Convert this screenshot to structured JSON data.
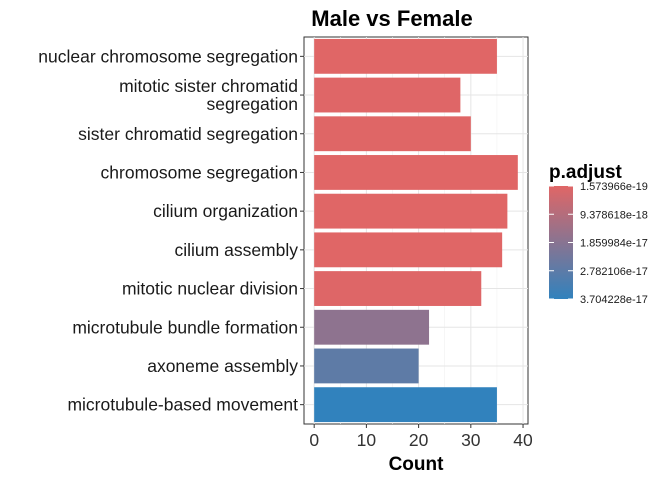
{
  "chart_data": {
    "type": "bar",
    "orientation": "horizontal",
    "title": "Male vs Female",
    "xlabel": "Count",
    "ylabel": "",
    "xlim": [
      -1.95,
      40.95
    ],
    "xticks": [
      0,
      10,
      20,
      30,
      40
    ],
    "grid": true,
    "categories": [
      "nuclear chromosome segregation",
      "mitotic sister chromatid segregation",
      "sister chromatid segregation",
      "chromosome segregation",
      "cilium organization",
      "cilium assembly",
      "mitotic nuclear division",
      "microtubule bundle formation",
      "axoneme assembly",
      "microtubule-based movement"
    ],
    "category_lines": [
      [
        "nuclear chromosome segregation"
      ],
      [
        "mitotic sister chromatid",
        "segregation"
      ],
      [
        "sister chromatid segregation"
      ],
      [
        "chromosome segregation"
      ],
      [
        "cilium organization"
      ],
      [
        "cilium assembly"
      ],
      [
        "mitotic nuclear division"
      ],
      [
        "microtubule bundle formation"
      ],
      [
        "axoneme assembly"
      ],
      [
        "microtubule-based movement"
      ]
    ],
    "values": [
      35,
      28,
      30,
      39,
      37,
      36,
      32,
      22,
      20,
      35
    ],
    "color_values": [
      1.6e-19,
      4e-19,
      3e-19,
      1.573966e-19,
      2e-19,
      2.5e-19,
      5e-19,
      1.75e-17,
      2.75e-17,
      3.704228e-17
    ],
    "legend": {
      "title": "p.adjust",
      "position": "right",
      "min": 1.573966e-19,
      "max": 3.704228e-17,
      "labels": [
        "1.573966e-19",
        "9.378618e-18",
        "1.859984e-17",
        "2.782106e-17",
        "3.704228e-17"
      ],
      "low_color": "#E06666",
      "high_color": "#3182BD"
    }
  }
}
